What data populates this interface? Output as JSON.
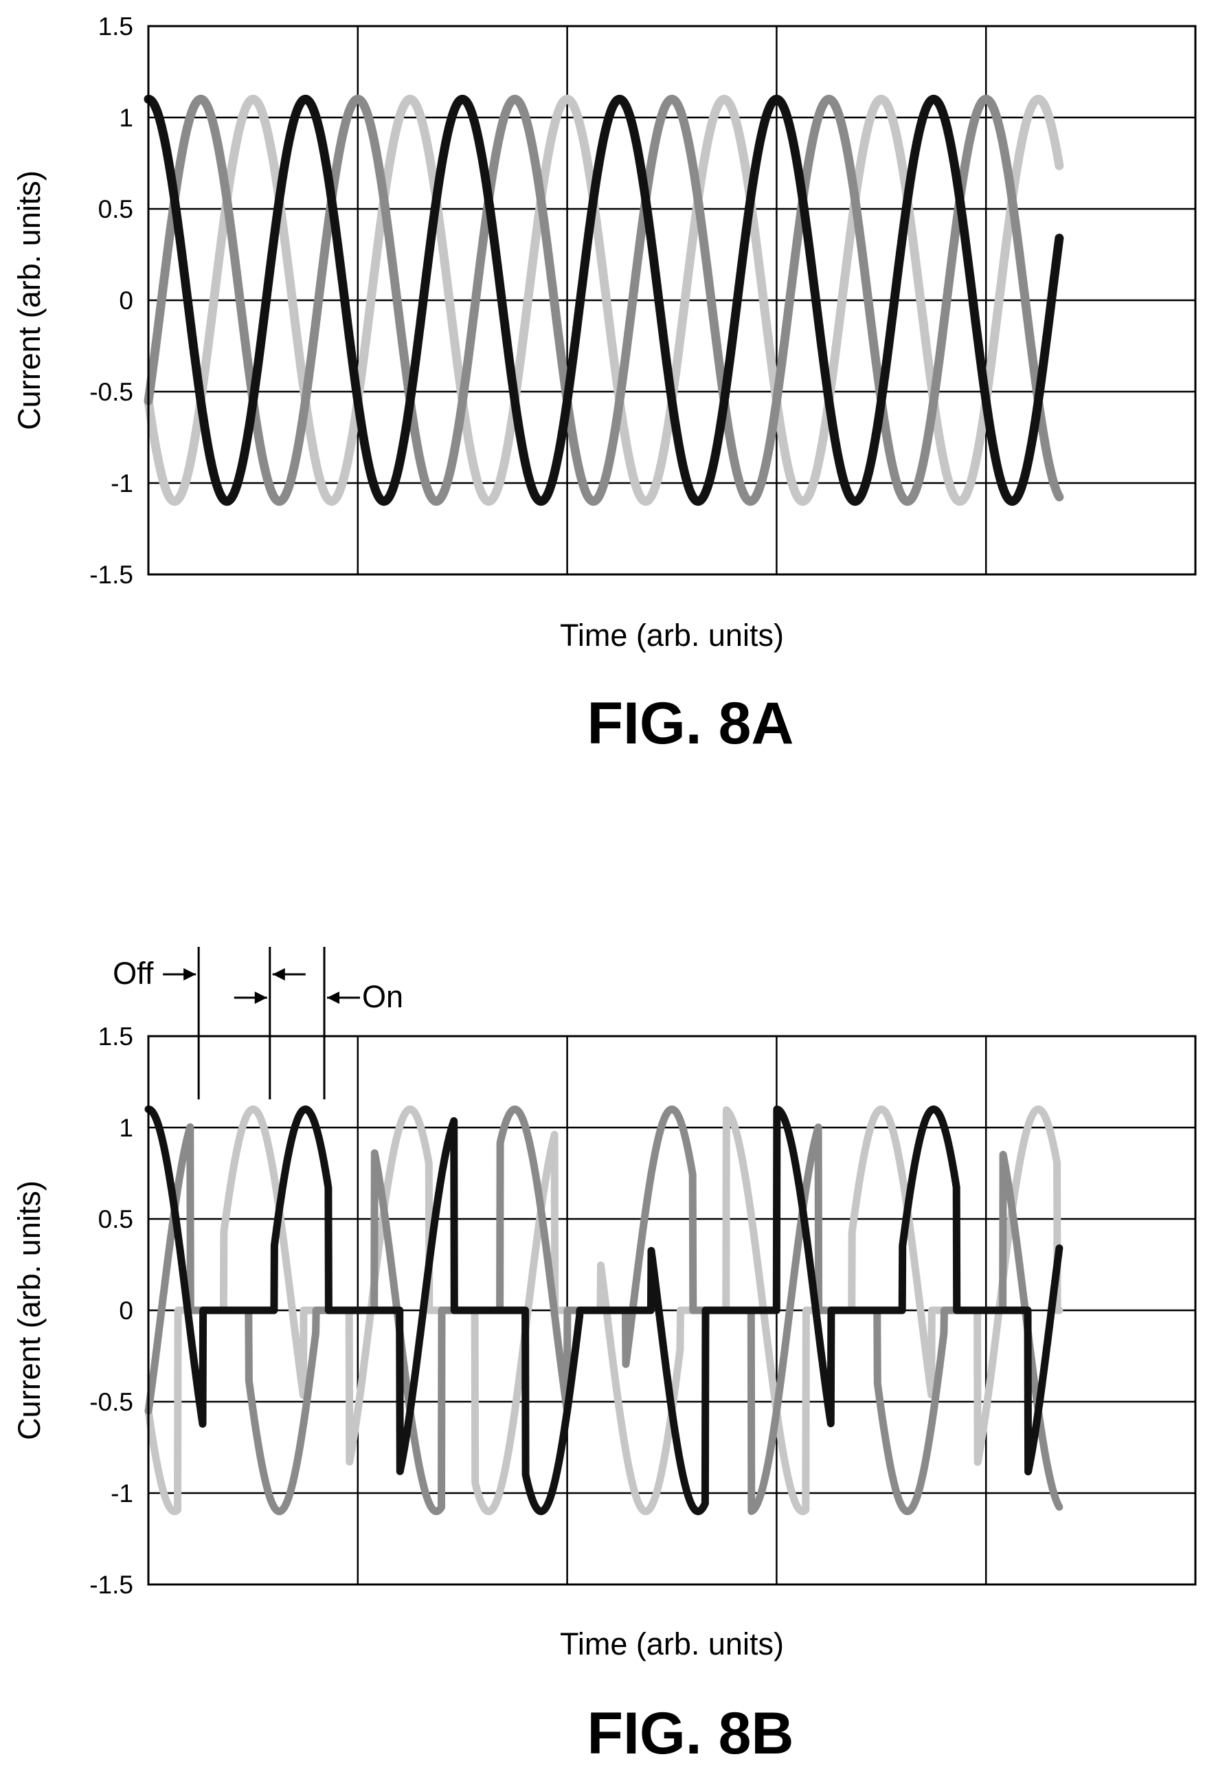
{
  "chart_data": [
    {
      "type": "line",
      "title": "",
      "figure_label": "FIG. 8A",
      "xlabel": "Time (arb. units)",
      "ylabel": "Current (arb. units)",
      "xlim": [
        0,
        5
      ],
      "ylim": [
        -1.5,
        1.5
      ],
      "yticks": [
        "1.5",
        "1",
        "0.5",
        "0",
        "-0.5",
        "-1",
        "-1.5"
      ],
      "ytick_values": [
        1.5,
        1,
        0.5,
        0,
        -0.5,
        -1,
        -1.5
      ],
      "grid": true,
      "legend": "none",
      "signal": {
        "amplitude": 1.1,
        "period": 0.75,
        "t_end": 4.35
      },
      "series": [
        {
          "phase_deg": 90,
          "color": "#111111"
        },
        {
          "phase_deg": -30,
          "color": "#8a8a8a"
        },
        {
          "phase_deg": 210,
          "color": "#c6c6c6"
        }
      ]
    },
    {
      "type": "line",
      "title": "",
      "figure_label": "FIG. 8B",
      "xlabel": "Time (arb. units)",
      "ylabel": "Current (arb. units)",
      "xlim": [
        0,
        5
      ],
      "ylim": [
        -1.5,
        1.5
      ],
      "yticks": [
        "1.5",
        "1",
        "0.5",
        "0",
        "-0.5",
        "-1",
        "-1.5"
      ],
      "ytick_values": [
        1.5,
        1,
        0.5,
        0,
        -0.5,
        -1,
        -1.5
      ],
      "grid": true,
      "legend": "none",
      "signal": {
        "amplitude": 1.1,
        "period": 0.75,
        "t_end": 4.35,
        "off_interval": 0.34,
        "on_interval": 0.26
      },
      "series": [
        {
          "phase_deg": 90,
          "color": "#111111"
        },
        {
          "phase_deg": -30,
          "color": "#8a8a8a"
        },
        {
          "phase_deg": 210,
          "color": "#c6c6c6"
        }
      ],
      "annotations": [
        {
          "text": "Off",
          "time": 0.24
        },
        {
          "text": "",
          "time": 0.58
        },
        {
          "text": "On",
          "time": 0.84
        }
      ]
    }
  ]
}
